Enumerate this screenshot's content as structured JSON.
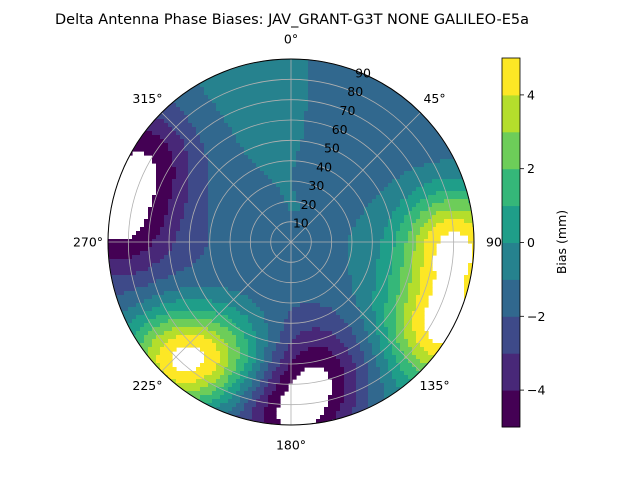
{
  "chart_data": {
    "type": "heatmap",
    "projection": "polar",
    "title": "Delta Antenna Phase Biases: JAV_GRANT-G3T   NONE GALILEO-E5a",
    "theta_direction": "clockwise",
    "theta_zero_location": "top",
    "theta_tick_labels": [
      "0°",
      "45°",
      "90",
      "135°",
      "180°",
      "225°",
      "270°",
      "315°"
    ],
    "theta_tick_values": [
      0,
      45,
      90,
      135,
      180,
      225,
      270,
      315
    ],
    "r_tick_labels": [
      "10",
      "20",
      "30",
      "40",
      "50",
      "60",
      "70",
      "80",
      "90"
    ],
    "r_tick_values": [
      10,
      20,
      30,
      40,
      50,
      60,
      70,
      80,
      90
    ],
    "rlim": [
      0,
      90
    ],
    "grid": true,
    "colorbar": {
      "label": "Bias (mm)",
      "colormap": "viridis",
      "range": [
        -5,
        5
      ],
      "levels": [
        -5,
        -4,
        -3,
        -2,
        -1,
        0,
        1,
        2,
        3,
        4,
        5
      ],
      "tick_labels": [
        "−4",
        "−2",
        "0",
        "2",
        "4"
      ],
      "tick_values": [
        -4,
        -2,
        0,
        2,
        4
      ],
      "placement": "right"
    },
    "features": [
      {
        "azimuth_deg": 180,
        "elevation_deg": 5,
        "bias_mm": -4.5
      },
      {
        "azimuth_deg": 165,
        "elevation_deg": 25,
        "bias_mm": -4.0
      },
      {
        "azimuth_deg": 20,
        "elevation_deg": 5,
        "bias_mm": -1.5
      },
      {
        "azimuth_deg": 90,
        "elevation_deg": 10,
        "bias_mm": 4.5
      },
      {
        "azimuth_deg": 120,
        "elevation_deg": 5,
        "bias_mm": 4.0
      },
      {
        "azimuth_deg": 225,
        "elevation_deg": 8,
        "bias_mm": 4.5
      },
      {
        "azimuth_deg": 210,
        "elevation_deg": 25,
        "bias_mm": 2.5
      },
      {
        "azimuth_deg": 300,
        "elevation_deg": 8,
        "bias_mm": -4.5
      },
      {
        "azimuth_deg": 275,
        "elevation_deg": 5,
        "bias_mm": -4.5
      },
      {
        "azimuth_deg": 60,
        "elevation_deg": 45,
        "bias_mm": -1.5
      },
      {
        "azimuth_deg": 0,
        "elevation_deg": 85,
        "bias_mm": -1.0
      }
    ]
  }
}
